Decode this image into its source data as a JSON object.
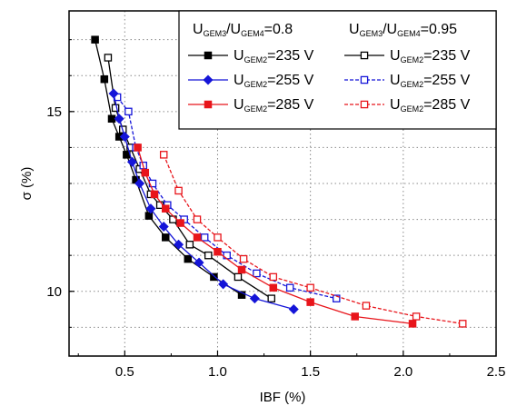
{
  "chart_data": {
    "type": "line",
    "xlabel": "IBF (%)",
    "ylabel": "σ (%)",
    "xlim": [
      0.2,
      2.5
    ],
    "ylim": [
      8.2,
      17.8
    ],
    "x_ticks": [
      "0.5",
      "1.0",
      "1.5",
      "2.0",
      "2.5"
    ],
    "y_ticks": [
      "10",
      "15"
    ],
    "grid": "dotted",
    "legend_placement": "top-right",
    "legend_headers": [
      {
        "main": "U",
        "sub1": "GEM3",
        "mid": "/U",
        "sub2": "GEM4",
        "tail": "=0.8"
      },
      {
        "main": "U",
        "sub1": "GEM3",
        "mid": "/U",
        "sub2": "GEM4",
        "tail": "=0.95"
      }
    ],
    "series": [
      {
        "name": "U_GEM2=235 V",
        "label_main": "U",
        "label_sub": "GEM2",
        "label_tail": "=235 V",
        "group": 0,
        "color": "#000000",
        "marker": "square",
        "filled": true,
        "dashed": false,
        "x": [
          0.34,
          0.39,
          0.43,
          0.47,
          0.51,
          0.56,
          0.63,
          0.72,
          0.84,
          0.98,
          1.13
        ],
        "y": [
          17.0,
          15.9,
          14.8,
          14.3,
          13.8,
          13.1,
          12.1,
          11.5,
          10.9,
          10.4,
          9.9
        ]
      },
      {
        "name": "U_GEM2=255 V",
        "label_main": "U",
        "label_sub": "GEM2",
        "label_tail": "=255 V",
        "group": 0,
        "color": "#1515d8",
        "marker": "diamond",
        "filled": true,
        "dashed": false,
        "x": [
          0.44,
          0.47,
          0.5,
          0.54,
          0.58,
          0.64,
          0.71,
          0.79,
          0.9,
          1.03,
          1.2,
          1.41
        ],
        "y": [
          15.5,
          14.8,
          14.3,
          13.6,
          13.0,
          12.3,
          11.8,
          11.3,
          10.8,
          10.2,
          9.8,
          9.5
        ]
      },
      {
        "name": "U_GEM2=285 V",
        "label_main": "U",
        "label_sub": "GEM2",
        "label_tail": "=285 V",
        "group": 0,
        "color": "#e8151b",
        "marker": "square",
        "filled": true,
        "dashed": false,
        "x": [
          0.57,
          0.61,
          0.66,
          0.72,
          0.8,
          0.89,
          1.0,
          1.13,
          1.3,
          1.5,
          1.74,
          2.05
        ],
        "y": [
          14.0,
          13.3,
          12.7,
          12.3,
          11.9,
          11.5,
          11.1,
          10.6,
          10.1,
          9.7,
          9.3,
          9.1
        ]
      },
      {
        "name": "U_GEM2=235 V",
        "label_main": "U",
        "label_sub": "GEM2",
        "label_tail": "=235 V",
        "group": 1,
        "color": "#000000",
        "marker": "square",
        "filled": false,
        "dashed": false,
        "x": [
          0.41,
          0.45,
          0.49,
          0.53,
          0.58,
          0.64,
          0.69,
          0.76,
          0.85,
          0.95,
          1.11,
          1.29
        ],
        "y": [
          16.5,
          15.1,
          14.5,
          14.0,
          13.4,
          12.7,
          12.4,
          12.0,
          11.3,
          11.0,
          10.4,
          9.8
        ]
      },
      {
        "name": "U_GEM2=255 V",
        "label_main": "U",
        "label_sub": "GEM2",
        "label_tail": "=255 V",
        "group": 1,
        "color": "#1515d8",
        "marker": "square",
        "filled": false,
        "dashed": true,
        "x": [
          0.46,
          0.52,
          0.56,
          0.6,
          0.65,
          0.73,
          0.82,
          0.93,
          1.05,
          1.21,
          1.39,
          1.64
        ],
        "y": [
          15.4,
          15.0,
          14.0,
          13.5,
          13.0,
          12.4,
          12.0,
          11.5,
          11.0,
          10.5,
          10.1,
          9.8
        ]
      },
      {
        "name": "U_GEM2=285 V",
        "label_main": "U",
        "label_sub": "GEM2",
        "label_tail": "=285 V",
        "group": 1,
        "color": "#e8151b",
        "marker": "square",
        "filled": false,
        "dashed": true,
        "x": [
          0.71,
          0.79,
          0.89,
          1.0,
          1.14,
          1.3,
          1.5,
          1.8,
          2.07,
          2.32
        ],
        "y": [
          13.8,
          12.8,
          12.0,
          11.5,
          10.9,
          10.4,
          10.1,
          9.6,
          9.3,
          9.1
        ]
      }
    ]
  }
}
